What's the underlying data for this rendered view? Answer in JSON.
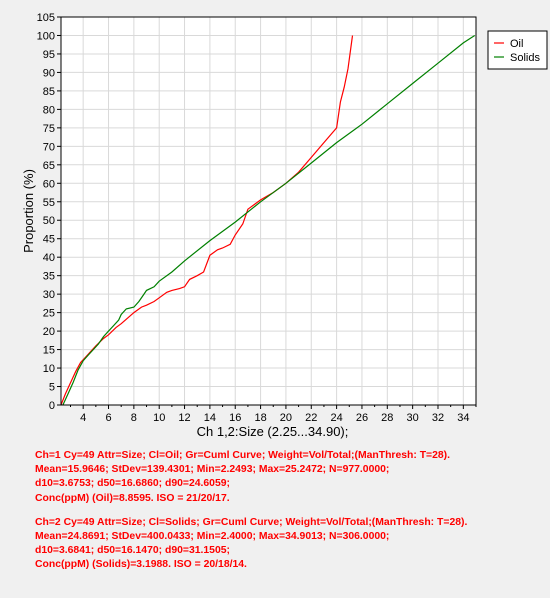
{
  "chart_data": {
    "type": "line",
    "title": "",
    "xlabel": "Ch 1,2:Size (2.25...34.90);",
    "ylabel": "Proportion (%)",
    "xlim": [
      2.25,
      35
    ],
    "ylim": [
      0,
      105
    ],
    "x_ticks": [
      4,
      6,
      8,
      10,
      12,
      14,
      16,
      18,
      20,
      22,
      24,
      26,
      28,
      30,
      32,
      34
    ],
    "y_ticks": [
      0,
      5,
      10,
      15,
      20,
      25,
      30,
      35,
      40,
      45,
      50,
      55,
      60,
      65,
      70,
      75,
      80,
      85,
      90,
      95,
      100,
      105
    ],
    "grid": true,
    "legend_position": "top-right",
    "series": [
      {
        "name": "Oil",
        "color": "#ff0000",
        "points": [
          [
            2.25,
            0
          ],
          [
            2.6,
            3
          ],
          [
            3.0,
            6
          ],
          [
            3.4,
            9
          ],
          [
            3.8,
            11.5
          ],
          [
            4.2,
            13
          ],
          [
            4.6,
            14.5
          ],
          [
            5.0,
            16
          ],
          [
            5.6,
            18
          ],
          [
            6.0,
            19
          ],
          [
            6.6,
            21
          ],
          [
            7.0,
            22
          ],
          [
            7.5,
            23.5
          ],
          [
            8.0,
            25
          ],
          [
            8.6,
            26.5
          ],
          [
            9.0,
            27
          ],
          [
            9.6,
            28
          ],
          [
            10.0,
            29
          ],
          [
            10.6,
            30.5
          ],
          [
            11.0,
            31
          ],
          [
            11.6,
            31.5
          ],
          [
            12.0,
            32
          ],
          [
            12.4,
            34
          ],
          [
            13.0,
            35
          ],
          [
            13.5,
            36
          ],
          [
            14.0,
            40.5
          ],
          [
            14.6,
            42
          ],
          [
            15.0,
            42.5
          ],
          [
            15.6,
            43.5
          ],
          [
            16.0,
            46
          ],
          [
            16.6,
            49
          ],
          [
            17.0,
            53
          ],
          [
            17.6,
            54.5
          ],
          [
            18.0,
            55.5
          ],
          [
            19.0,
            57.5
          ],
          [
            20.0,
            60
          ],
          [
            21.0,
            63
          ],
          [
            22.0,
            67
          ],
          [
            23.0,
            71
          ],
          [
            24.0,
            75
          ],
          [
            24.3,
            82
          ],
          [
            24.6,
            86
          ],
          [
            24.9,
            91
          ],
          [
            25.25,
            100
          ]
        ]
      },
      {
        "name": "Solids",
        "color": "#008000",
        "points": [
          [
            2.4,
            0
          ],
          [
            2.8,
            3
          ],
          [
            3.2,
            6
          ],
          [
            3.6,
            9.5
          ],
          [
            4.0,
            12
          ],
          [
            4.4,
            13.5
          ],
          [
            4.8,
            15
          ],
          [
            5.2,
            16.5
          ],
          [
            5.6,
            18.5
          ],
          [
            6.0,
            20
          ],
          [
            6.4,
            21.5
          ],
          [
            6.8,
            23
          ],
          [
            7.0,
            24.5
          ],
          [
            7.4,
            26
          ],
          [
            8.0,
            26.5
          ],
          [
            8.4,
            28
          ],
          [
            8.8,
            30
          ],
          [
            9.0,
            31
          ],
          [
            9.6,
            32
          ],
          [
            10.0,
            33.5
          ],
          [
            11.0,
            36
          ],
          [
            12.0,
            39
          ],
          [
            14.0,
            44.5
          ],
          [
            16.0,
            49.5
          ],
          [
            18.0,
            55
          ],
          [
            20.0,
            60
          ],
          [
            22.0,
            65.5
          ],
          [
            24.0,
            71
          ],
          [
            26.0,
            76
          ],
          [
            28.0,
            81.5
          ],
          [
            30.0,
            87
          ],
          [
            32.0,
            92.5
          ],
          [
            34.0,
            98
          ],
          [
            34.9,
            100
          ]
        ]
      }
    ]
  },
  "stats": [
    {
      "lines": [
        "Ch=1 Cy=49 Attr=Size; Cl=Oil; Gr=Cuml Curve; Weight=Vol/Total;(ManThresh: T=28).",
        "Mean=15.9646; StDev=139.4301; Min=2.2493; Max=25.2472; N=977.0000;",
        "d10=3.6753; d50=16.6860; d90=24.6059;",
        "Conc(ppM) (Oil)=8.8595. ISO = 21/20/17."
      ]
    },
    {
      "lines": [
        "Ch=2 Cy=49 Attr=Size; Cl=Solids; Gr=Cuml Curve; Weight=Vol/Total;(ManThresh: T=28).",
        "Mean=24.8691; StDev=400.0433; Min=2.4000; Max=34.9013; N=306.0000;",
        "d10=3.6841; d50=16.1470; d90=31.1505;",
        "Conc(ppM) (Solids)=3.1988. ISO = 20/18/14."
      ]
    }
  ]
}
